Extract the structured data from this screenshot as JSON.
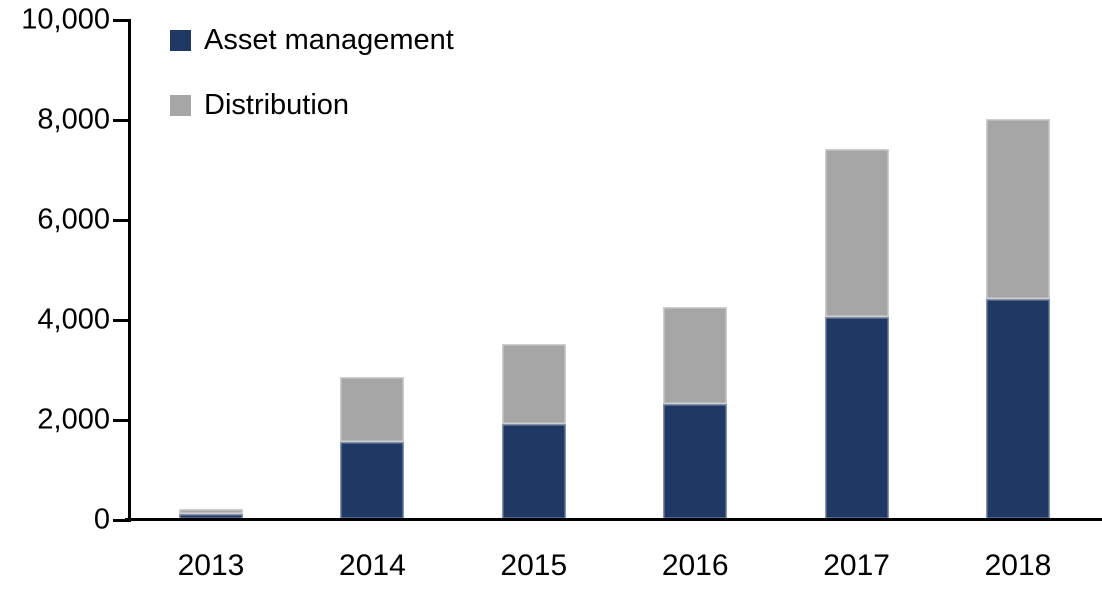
{
  "chart_data": {
    "type": "bar",
    "stacked": true,
    "title": "",
    "xlabel": "",
    "ylabel": "",
    "categories": [
      "2013",
      "2014",
      "2015",
      "2016",
      "2017",
      "2018"
    ],
    "series": [
      {
        "name": "Asset management",
        "color": "#1f3864",
        "values": [
          100,
          1550,
          1900,
          2300,
          4050,
          4400
        ]
      },
      {
        "name": "Distribution",
        "color": "#a6a6a6",
        "values": [
          100,
          1300,
          1600,
          1950,
          3350,
          3600
        ]
      }
    ],
    "stack_totals": [
      200,
      2850,
      3500,
      4250,
      7400,
      8000
    ],
    "ylim": [
      0,
      10000
    ],
    "yticks": [
      0,
      2000,
      4000,
      6000,
      8000,
      10000
    ],
    "ytick_labels": [
      "0",
      "2,000",
      "4,000",
      "6,000",
      "8,000",
      "10,000"
    ],
    "grid": false,
    "legend": {
      "position": "top-left-inside",
      "items": [
        {
          "label": "Asset management",
          "color": "#1f3864"
        },
        {
          "label": "Distribution",
          "color": "#a6a6a6"
        }
      ]
    },
    "axis_color": "#000000",
    "background_color": "#ffffff"
  }
}
